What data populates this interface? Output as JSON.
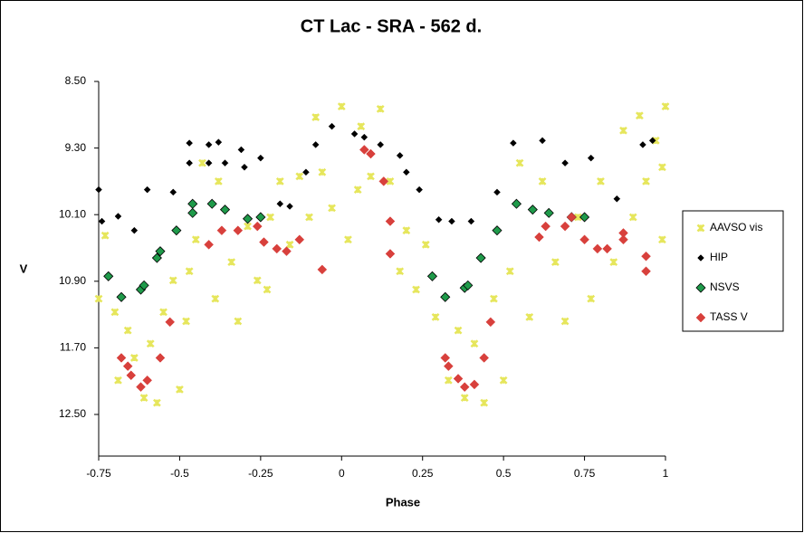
{
  "chart_data": {
    "type": "scatter",
    "title": "CT Lac - SRA - 562 d.",
    "x_label": "Phase",
    "y_label": "V",
    "xlim": [
      -0.75,
      1
    ],
    "xticks": [
      -0.75,
      -0.5,
      -0.25,
      0,
      0.25,
      0.5,
      0.75,
      1
    ],
    "ylim": [
      8.5,
      13.0
    ],
    "y_reversed": true,
    "yticks": [
      {
        "value": 8.5,
        "label": "8.50"
      },
      {
        "value": 9.3,
        "label": "9.30"
      },
      {
        "value": 10.1,
        "label": "10.10"
      },
      {
        "value": 10.9,
        "label": "10.90"
      },
      {
        "value": 11.7,
        "label": "11.70"
      },
      {
        "value": 12.5,
        "label": "12.50"
      }
    ],
    "grid": false,
    "legend": "right",
    "series": [
      {
        "name": "AAVSO vis",
        "color": "#e6e65c",
        "marker": "cross",
        "x": [
          -0.75,
          -0.73,
          -0.7,
          -0.69,
          -0.66,
          -0.64,
          -0.61,
          -0.59,
          -0.57,
          -0.55,
          -0.52,
          -0.5,
          -0.48,
          -0.47,
          -0.45,
          -0.43,
          -0.39,
          -0.38,
          -0.34,
          -0.32,
          -0.29,
          -0.26,
          -0.23,
          -0.22,
          -0.19,
          -0.16,
          -0.13,
          -0.1,
          -0.08,
          -0.06,
          -0.03,
          0.0,
          0.02,
          0.05,
          0.06,
          0.09,
          0.12,
          0.15,
          0.18,
          0.2,
          0.23,
          0.26,
          0.29,
          0.33,
          0.36,
          0.38,
          0.41,
          0.44,
          0.47,
          0.5,
          0.52,
          0.55,
          0.58,
          0.62,
          0.66,
          0.69,
          0.73,
          0.77,
          0.8,
          0.84,
          0.87,
          0.9,
          0.92,
          0.94,
          0.97,
          0.99,
          1.0,
          0.99
        ],
        "values": [
          11.11,
          10.35,
          11.27,
          12.09,
          11.49,
          11.82,
          12.3,
          11.65,
          12.36,
          11.27,
          10.89,
          12.2,
          11.38,
          10.78,
          10.4,
          9.48,
          11.11,
          9.7,
          10.67,
          11.38,
          10.24,
          10.89,
          11.0,
          10.13,
          9.7,
          10.46,
          9.64,
          10.13,
          8.93,
          9.59,
          10.02,
          8.8,
          10.4,
          9.8,
          9.04,
          9.64,
          8.83,
          9.7,
          10.78,
          10.29,
          11.0,
          10.46,
          11.33,
          12.09,
          11.49,
          12.3,
          11.65,
          12.36,
          11.11,
          12.09,
          10.78,
          9.48,
          11.33,
          9.7,
          10.67,
          11.38,
          10.13,
          11.11,
          9.7,
          10.67,
          9.09,
          10.13,
          8.91,
          9.7,
          9.21,
          10.4,
          8.8,
          9.53
        ]
      },
      {
        "name": "HIP",
        "color": "#000000",
        "marker": "diamond-small",
        "x": [
          -0.75,
          -0.74,
          -0.69,
          -0.64,
          -0.6,
          -0.52,
          -0.47,
          -0.47,
          -0.41,
          -0.38,
          -0.41,
          -0.36,
          -0.31,
          -0.3,
          -0.25,
          -0.19,
          -0.16,
          -0.11,
          -0.08,
          -0.03,
          0.04,
          0.07,
          0.12,
          0.18,
          0.2,
          0.24,
          0.3,
          0.34,
          0.4,
          0.48,
          0.53,
          0.62,
          0.69,
          0.77,
          0.85,
          0.93,
          0.96
        ],
        "values": [
          9.8,
          10.18,
          10.12,
          10.29,
          9.8,
          9.83,
          9.24,
          9.48,
          9.26,
          9.23,
          9.48,
          9.48,
          9.32,
          9.53,
          9.42,
          9.97,
          10.0,
          9.59,
          9.26,
          9.04,
          9.13,
          9.17,
          9.26,
          9.39,
          9.59,
          9.8,
          10.16,
          10.18,
          10.18,
          9.83,
          9.24,
          9.21,
          9.48,
          9.42,
          9.91,
          9.26,
          9.21
        ]
      },
      {
        "name": "NSVS",
        "color": "#1f9a4a",
        "marker": "diamond-outline",
        "x": [
          -0.72,
          -0.68,
          -0.62,
          -0.61,
          -0.57,
          -0.56,
          -0.51,
          -0.46,
          -0.46,
          -0.4,
          -0.36,
          -0.29,
          -0.25,
          0.28,
          0.32,
          0.38,
          0.39,
          0.43,
          0.48,
          0.54,
          0.59,
          0.64,
          0.71,
          0.75
        ],
        "values": [
          10.84,
          11.09,
          11.0,
          10.95,
          10.62,
          10.54,
          10.29,
          9.97,
          10.08,
          9.97,
          10.04,
          10.15,
          10.13,
          10.84,
          11.09,
          10.98,
          10.95,
          10.62,
          10.29,
          9.97,
          10.04,
          10.08,
          10.13,
          10.13
        ]
      },
      {
        "name": "TASS V",
        "color": "#d8403c",
        "marker": "diamond",
        "x": [
          -0.68,
          -0.66,
          -0.65,
          -0.62,
          -0.6,
          -0.56,
          -0.53,
          -0.41,
          -0.37,
          -0.32,
          -0.26,
          -0.24,
          -0.2,
          -0.17,
          -0.13,
          -0.06,
          0.07,
          0.09,
          0.13,
          0.15,
          0.15,
          0.32,
          0.33,
          0.36,
          0.38,
          0.41,
          0.44,
          0.46,
          0.61,
          0.63,
          0.69,
          0.71,
          0.75,
          0.79,
          0.82,
          0.87,
          0.87,
          0.94,
          0.94
        ],
        "values": [
          11.82,
          11.92,
          12.03,
          12.17,
          12.09,
          11.82,
          11.39,
          10.46,
          10.29,
          10.29,
          10.24,
          10.43,
          10.51,
          10.54,
          10.4,
          10.76,
          9.32,
          9.37,
          9.7,
          10.18,
          10.57,
          11.82,
          11.92,
          12.07,
          12.17,
          12.14,
          11.82,
          11.39,
          10.37,
          10.24,
          10.24,
          10.13,
          10.4,
          10.51,
          10.51,
          10.4,
          10.32,
          10.6,
          10.78
        ]
      }
    ]
  }
}
